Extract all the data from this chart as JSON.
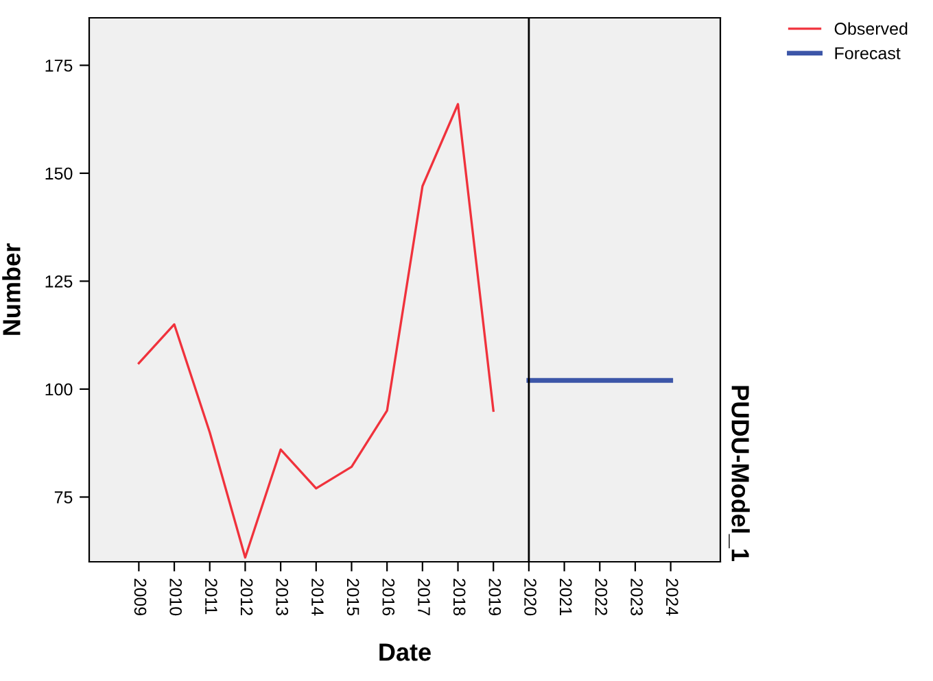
{
  "chart_data": {
    "type": "line",
    "xlabel": "Date",
    "ylabel": "Number",
    "annotations": [
      "PUDU-Model_1"
    ],
    "series": [
      {
        "name": "Observed",
        "color": "#f0323c",
        "x": [
          2009,
          2010,
          2011,
          2012,
          2013,
          2014,
          2015,
          2016,
          2017,
          2018,
          2019
        ],
        "values": [
          106,
          115,
          90,
          61,
          86,
          77,
          82,
          95,
          147,
          166,
          95
        ]
      },
      {
        "name": "Forecast",
        "color": "#3c56a8",
        "x": [
          2020,
          2021,
          2022,
          2023,
          2024
        ],
        "values": [
          102,
          102,
          102,
          102,
          102
        ]
      }
    ],
    "xlim": [
      2007.6,
      2025.4
    ],
    "xticks": [
      2009,
      2010,
      2011,
      2012,
      2013,
      2014,
      2015,
      2016,
      2017,
      2018,
      2019,
      2020,
      2021,
      2022,
      2023,
      2024
    ],
    "ylim": [
      60,
      186
    ],
    "yticks": [
      75,
      100,
      125,
      150,
      175
    ],
    "ref_lines": [
      {
        "axis": "x",
        "value": 2020,
        "color": "#000000"
      }
    ],
    "grid": false,
    "legend": "top right",
    "marker": "none",
    "line_style": "solid"
  }
}
